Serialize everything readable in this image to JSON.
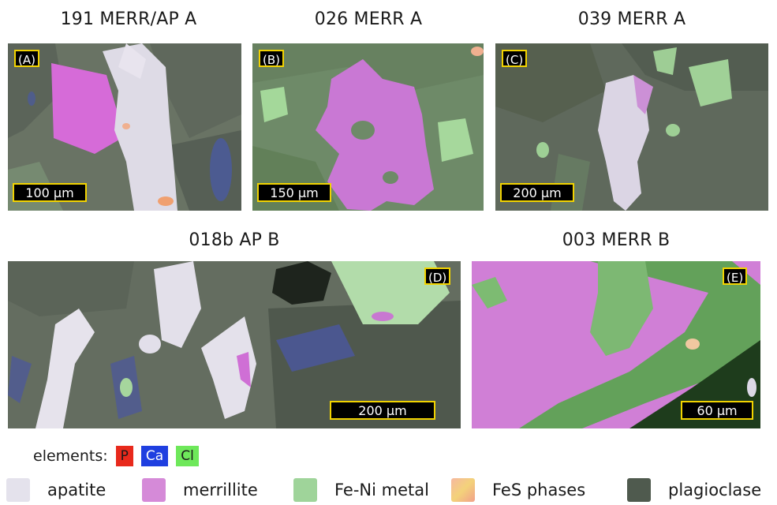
{
  "panels": [
    {
      "title": "191 MERR/AP A",
      "tag": "(A)",
      "scale": "100 µm"
    },
    {
      "title": "026 MERR A",
      "tag": "(B)",
      "scale": "150 µm"
    },
    {
      "title": "039 MERR A",
      "tag": "(C)",
      "scale": "200 µm"
    },
    {
      "title": "018b AP B",
      "tag": "(D)",
      "scale": "200 µm"
    },
    {
      "title": "003 MERR B",
      "tag": "(E)",
      "scale": "60 µm"
    }
  ],
  "elements": {
    "label": "elements:",
    "items": [
      {
        "symbol": "P",
        "color": "#e8291c"
      },
      {
        "symbol": "Ca",
        "color": "#1f3fe0"
      },
      {
        "symbol": "Cl",
        "color": "#6ee85a"
      }
    ]
  },
  "legend": [
    {
      "label": "apatite",
      "color": "#e4e2ec"
    },
    {
      "label": "merrillite",
      "color": "#d58ad8"
    },
    {
      "label": "Fe-Ni metal",
      "color": "#9fd49a"
    },
    {
      "label": "FeS phases",
      "color": "#f2c49a"
    },
    {
      "label": "plagioclase",
      "color": "#4f5a4e"
    }
  ]
}
